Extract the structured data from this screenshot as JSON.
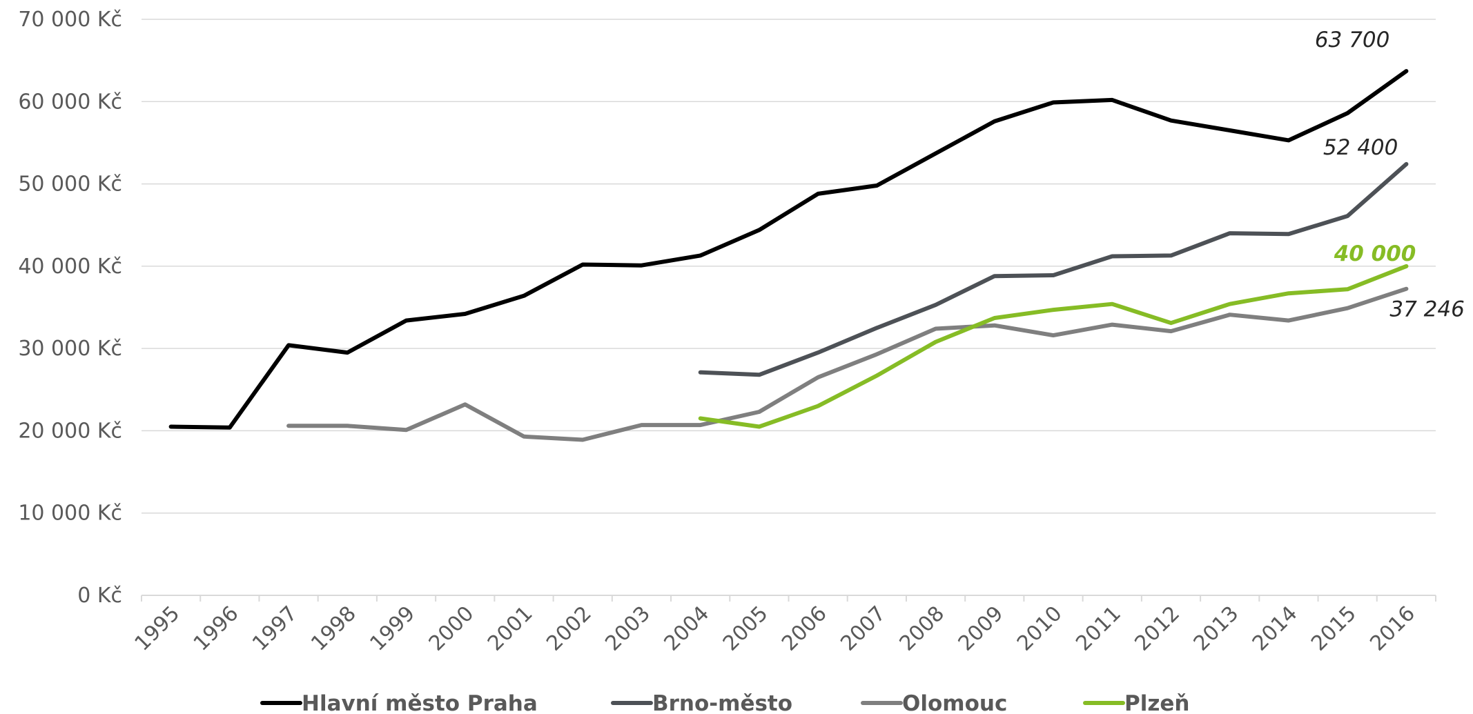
{
  "chart_data": {
    "type": "line",
    "x": [
      1995,
      1996,
      1997,
      1998,
      1999,
      2000,
      2001,
      2002,
      2003,
      2004,
      2005,
      2006,
      2007,
      2008,
      2009,
      2010,
      2011,
      2012,
      2013,
      2014,
      2015,
      2016
    ],
    "y_ticks": [
      "0 Kč",
      "10 000 Kč",
      "20 000 Kč",
      "30 000 Kč",
      "40 000 Kč",
      "50 000 Kč",
      "60 000 Kč",
      "70 000 Kč"
    ],
    "ylim": [
      0,
      70000
    ],
    "y_unit": "Kč",
    "grid": true,
    "legend_position": "bottom",
    "series": [
      {
        "name": "Hlavní město Praha",
        "color": "#000000",
        "values": [
          20500,
          20400,
          30400,
          29500,
          33400,
          34200,
          36400,
          40200,
          40100,
          41300,
          44400,
          48800,
          49800,
          53700,
          57600,
          59900,
          60200,
          57700,
          56500,
          55300,
          58600,
          63700
        ],
        "end_label": "63 700"
      },
      {
        "name": "Brno-město",
        "color": "#4d5156",
        "values": [
          null,
          null,
          null,
          null,
          null,
          null,
          null,
          null,
          null,
          27100,
          26800,
          29500,
          32500,
          35300,
          38800,
          38900,
          41200,
          41300,
          44000,
          43900,
          46100,
          52400
        ],
        "end_label": "52 400"
      },
      {
        "name": "Olomouc",
        "color": "#7f7f7f",
        "values": [
          null,
          null,
          20600,
          20600,
          20100,
          23200,
          19300,
          18900,
          20700,
          20700,
          22300,
          26500,
          29300,
          32400,
          32800,
          31600,
          32900,
          32100,
          34100,
          33400,
          34900,
          37246
        ],
        "end_label": "37 246"
      },
      {
        "name": "Plzeň",
        "color": "#86bc25",
        "values": [
          null,
          null,
          null,
          null,
          null,
          null,
          null,
          null,
          null,
          21500,
          20500,
          23000,
          26700,
          30800,
          33700,
          34700,
          35400,
          33100,
          35400,
          36700,
          37200,
          40000
        ],
        "end_label": "40 000"
      }
    ]
  }
}
